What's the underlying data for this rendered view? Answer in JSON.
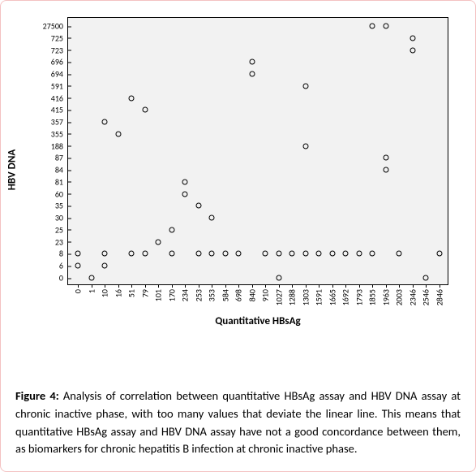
{
  "chart": {
    "type": "scatter",
    "background_color": "#ffffff",
    "plot_background": "#f2f2f2",
    "border_color": "#000000",
    "marker": {
      "shape": "circle",
      "size": 7,
      "stroke": "#000000",
      "fill": "none",
      "stroke_width": 1
    },
    "xlabel": "Quantitative HBsAg",
    "ylabel": "HBV DNA",
    "label_fontsize": 13,
    "tick_fontsize": 10,
    "x_ticks": [
      "0",
      "1",
      "10",
      "16",
      "51",
      "79",
      "101",
      "170",
      "234",
      "253",
      "353",
      "584",
      "698",
      "840",
      "910",
      "1027",
      "1288",
      "1303",
      "1591",
      "1665",
      "1692",
      "1793",
      "1855",
      "1963",
      "2003",
      "2346",
      "2546",
      "2846"
    ],
    "y_ticks": [
      "0",
      "6",
      "8",
      "23",
      "25",
      "30",
      "35",
      "60",
      "81",
      "84",
      "87",
      "188",
      "355",
      "357",
      "415",
      "416",
      "591",
      "694",
      "696",
      "723",
      "725",
      "27500"
    ],
    "points": [
      {
        "xi": 0,
        "yi": 1
      },
      {
        "xi": 0,
        "yi": 2
      },
      {
        "xi": 1,
        "yi": 0
      },
      {
        "xi": 2,
        "yi": 1
      },
      {
        "xi": 2,
        "yi": 2
      },
      {
        "xi": 2,
        "yi": 13
      },
      {
        "xi": 3,
        "yi": 12
      },
      {
        "xi": 4,
        "yi": 2
      },
      {
        "xi": 4,
        "yi": 15
      },
      {
        "xi": 5,
        "yi": 2
      },
      {
        "xi": 5,
        "yi": 14
      },
      {
        "xi": 6,
        "yi": 3
      },
      {
        "xi": 7,
        "yi": 4
      },
      {
        "xi": 7,
        "yi": 2
      },
      {
        "xi": 8,
        "yi": 8
      },
      {
        "xi": 8,
        "yi": 7
      },
      {
        "xi": 9,
        "yi": 2
      },
      {
        "xi": 9,
        "yi": 6
      },
      {
        "xi": 10,
        "yi": 5
      },
      {
        "xi": 10,
        "yi": 2
      },
      {
        "xi": 11,
        "yi": 2
      },
      {
        "xi": 12,
        "yi": 2
      },
      {
        "xi": 13,
        "yi": 18
      },
      {
        "xi": 13,
        "yi": 17
      },
      {
        "xi": 14,
        "yi": 2
      },
      {
        "xi": 15,
        "yi": 2
      },
      {
        "xi": 15,
        "yi": 0
      },
      {
        "xi": 16,
        "yi": 2
      },
      {
        "xi": 17,
        "yi": 16
      },
      {
        "xi": 17,
        "yi": 11
      },
      {
        "xi": 17,
        "yi": 2
      },
      {
        "xi": 18,
        "yi": 2
      },
      {
        "xi": 19,
        "yi": 2
      },
      {
        "xi": 20,
        "yi": 2
      },
      {
        "xi": 21,
        "yi": 2
      },
      {
        "xi": 22,
        "yi": 21
      },
      {
        "xi": 22,
        "yi": 2
      },
      {
        "xi": 23,
        "yi": 21
      },
      {
        "xi": 23,
        "yi": 10
      },
      {
        "xi": 23,
        "yi": 9
      },
      {
        "xi": 24,
        "yi": 2
      },
      {
        "xi": 25,
        "yi": 20
      },
      {
        "xi": 25,
        "yi": 19
      },
      {
        "xi": 26,
        "yi": 0
      },
      {
        "xi": 27,
        "yi": 2
      }
    ]
  },
  "caption": {
    "label": "Figure 4:",
    "text": " Analysis of correlation between quantitative HBsAg assay and HBV DNA assay at chronic inactive phase, with too many values that deviate the linear line. This means that quantitative HBsAg assay and HBV DNA assay have not a good concordance between them, as biomarkers for chronic hepatitis B infection at chronic inactive phase."
  }
}
